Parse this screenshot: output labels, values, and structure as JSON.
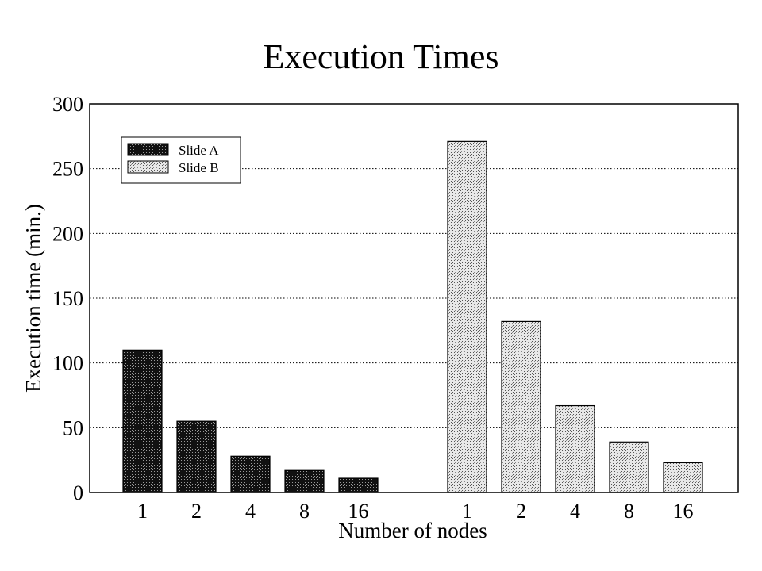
{
  "chart_data": {
    "type": "bar",
    "title": "Execution Times",
    "xlabel": "Number of nodes",
    "ylabel": "Execution time (min.)",
    "ylim": [
      0,
      300
    ],
    "yticks": [
      0,
      50,
      100,
      150,
      200,
      250,
      300
    ],
    "grid": true,
    "legend_position": "top-left",
    "series": [
      {
        "name": "Slide A",
        "categories": [
          "1",
          "2",
          "4",
          "8",
          "16"
        ],
        "values": [
          110,
          55,
          28,
          17,
          11
        ],
        "color": "#1a1a1a"
      },
      {
        "name": "Slide B",
        "categories": [
          "1",
          "2",
          "4",
          "8",
          "16"
        ],
        "values": [
          271,
          132,
          67,
          39,
          23
        ],
        "color": "#cfcfcf"
      }
    ]
  }
}
